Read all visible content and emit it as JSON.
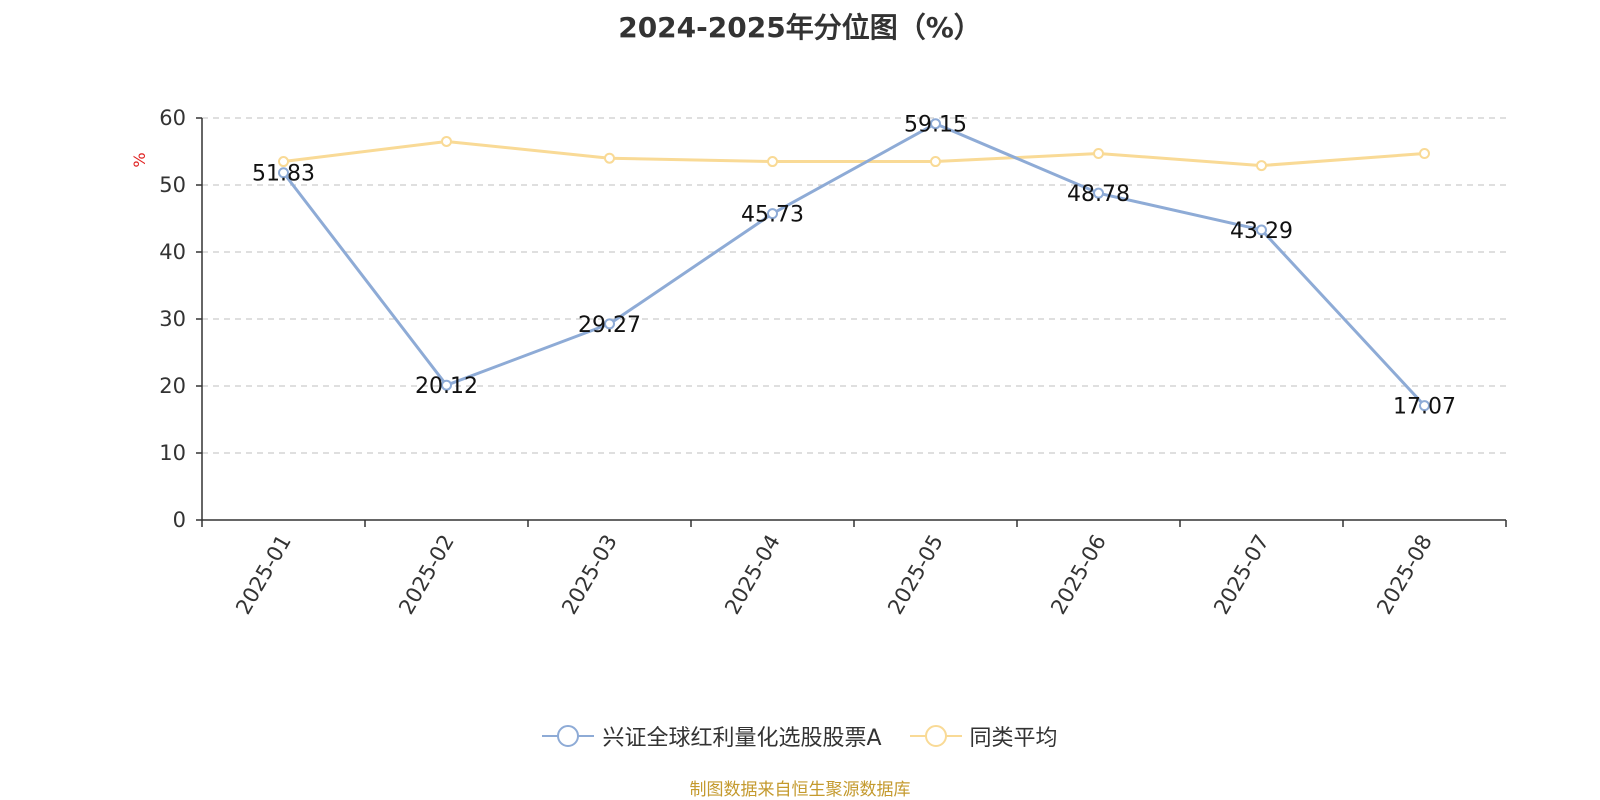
{
  "chart_data": {
    "type": "line",
    "title": "2024-2025年分位图（%）",
    "ylabel": "%",
    "xlabel": "",
    "categories": [
      "2025-01",
      "2025-02",
      "2025-03",
      "2025-04",
      "2025-05",
      "2025-06",
      "2025-07",
      "2025-08"
    ],
    "ylim": [
      0,
      60
    ],
    "yticks": [
      "0",
      "10",
      "20",
      "30",
      "40",
      "50",
      "60"
    ],
    "grid": true,
    "legend_position": "bottom",
    "series": [
      {
        "name": "兴证全球红利量化选股股票A",
        "color": "#8eabd6",
        "values": [
          51.83,
          20.12,
          29.27,
          45.73,
          59.15,
          48.78,
          43.29,
          17.07
        ],
        "data_labels": [
          "51.83",
          "20.12",
          "29.27",
          "45.73",
          "59.15",
          "48.78",
          "43.29",
          "17.07"
        ]
      },
      {
        "name": "同类平均",
        "color": "#f9da96",
        "values": [
          53.5,
          56.5,
          54.0,
          53.5,
          53.5,
          54.7,
          52.9,
          54.7
        ]
      }
    ]
  },
  "footer": {
    "source": "制图数据来自恒生聚源数据库"
  },
  "colors": {
    "axis": "#333333",
    "grid": "#cccccc",
    "ylabel": "#e02020",
    "source": "#c49a2e"
  }
}
